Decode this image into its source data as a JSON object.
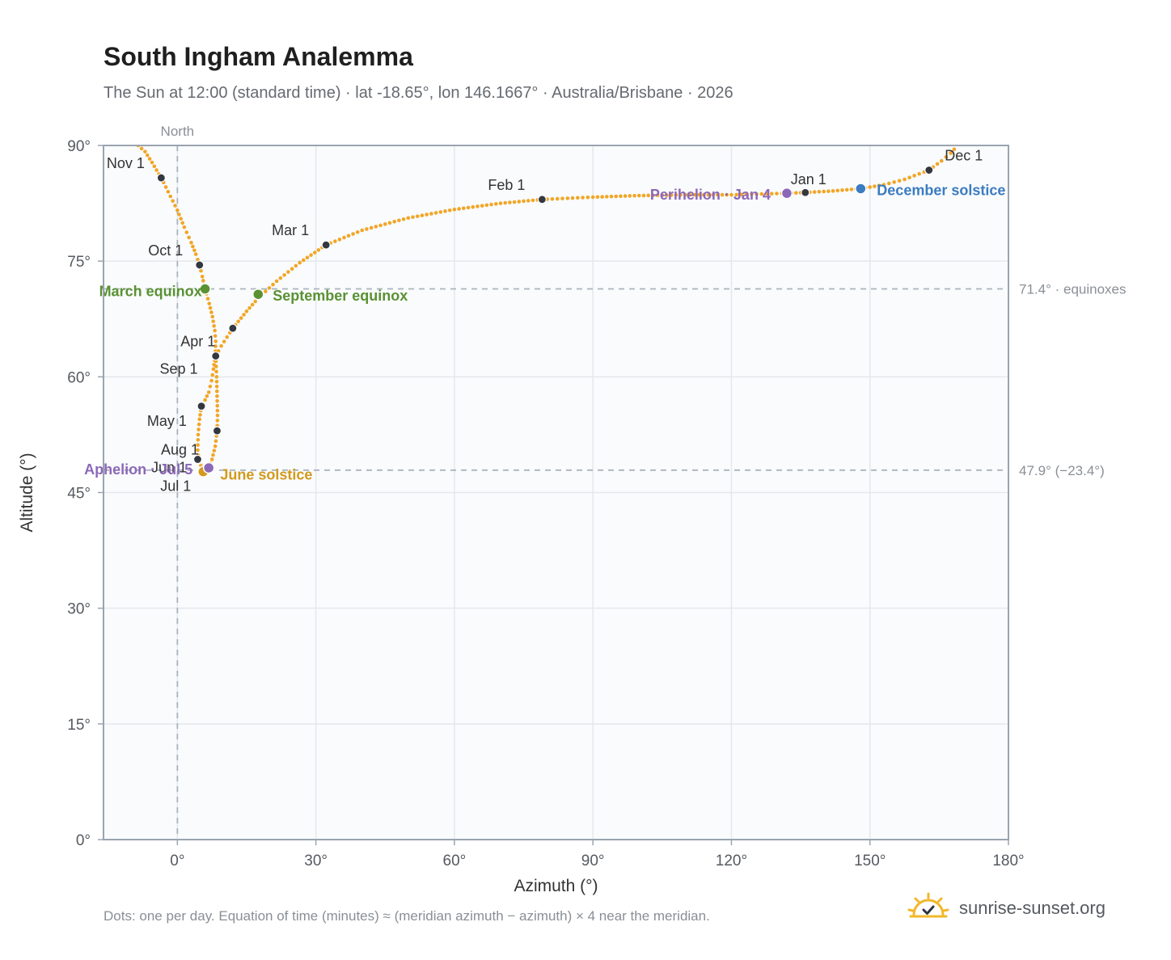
{
  "header": {
    "title": "South Ingham Analemma",
    "subtitle": "The Sun at 12:00 (standard time) · lat -18.65°, lon 146.1667° · Australia/Brisbane · 2026"
  },
  "footer": {
    "note": "Dots: one per day. Equation of time (minutes) ≈ (meridian azimuth − azimuth) × 4 near the meridian.",
    "brand": "sunrise-sunset.org",
    "brand_icon": "sun-logo-icon"
  },
  "colors": {
    "path": "#f2a626",
    "month_dot": "#333840",
    "equinox": "#5a9133",
    "june_solstice": "#d39a1b",
    "december_solstice": "#3b7cc0",
    "apsis": "#8c68b8",
    "ref_line": "#aab4bd",
    "plot_bg": "#f9fbfd",
    "grid": "#e4e8ec",
    "frame": "#9aa4b0"
  },
  "chart_data": {
    "type": "scatter",
    "xlabel": "Azimuth (°)",
    "ylabel": "Altitude (°)",
    "xlim": [
      -16,
      180
    ],
    "ylim": [
      0,
      90
    ],
    "xticks": [
      {
        "value": 0,
        "label": "0°"
      },
      {
        "value": 30,
        "label": "30°"
      },
      {
        "value": 60,
        "label": "60°"
      },
      {
        "value": 90,
        "label": "90°"
      },
      {
        "value": 120,
        "label": "120°"
      },
      {
        "value": 150,
        "label": "150°"
      },
      {
        "value": 180,
        "label": "180°"
      }
    ],
    "yticks": [
      {
        "value": 0,
        "label": "0°"
      },
      {
        "value": 15,
        "label": "15°"
      },
      {
        "value": 30,
        "label": "30°"
      },
      {
        "value": 45,
        "label": "45°"
      },
      {
        "value": 60,
        "label": "60°"
      },
      {
        "value": 75,
        "label": "75°"
      },
      {
        "value": 90,
        "label": "90°"
      }
    ],
    "grid": true,
    "north_marker": {
      "azimuth": 0,
      "label": "North"
    },
    "reference_lines": [
      {
        "altitude": 71.4,
        "label": "71.4° · equinoxes"
      },
      {
        "altitude": 47.9,
        "label": "47.9° (−23.4°)"
      }
    ],
    "path_points": [
      [
        -8.5,
        90.0
      ],
      [
        -7.0,
        89.2
      ],
      [
        -5.5,
        87.8
      ],
      [
        -3.5,
        85.8
      ],
      [
        -2.0,
        84.0
      ],
      [
        0.0,
        81.6
      ],
      [
        1.5,
        79.4
      ],
      [
        3.0,
        77.4
      ],
      [
        4.0,
        75.9
      ],
      [
        4.8,
        74.5
      ],
      [
        5.4,
        73.0
      ],
      [
        6.0,
        71.4
      ],
      [
        6.9,
        69.5
      ],
      [
        7.6,
        67.8
      ],
      [
        8.1,
        66.0
      ],
      [
        8.3,
        64.6
      ],
      [
        8.2,
        62.7
      ],
      [
        7.8,
        61.0
      ],
      [
        7.4,
        59.5
      ],
      [
        6.8,
        58.0
      ],
      [
        6.0,
        57.0
      ],
      [
        5.2,
        56.2
      ],
      [
        4.8,
        54.5
      ],
      [
        4.5,
        52.5
      ],
      [
        4.4,
        50.5
      ],
      [
        4.7,
        49.1
      ],
      [
        5.4,
        48.0
      ],
      [
        6.0,
        47.6
      ],
      [
        6.8,
        48.2
      ],
      [
        7.5,
        49.3
      ],
      [
        8.2,
        51.0
      ],
      [
        8.6,
        53.0
      ],
      [
        8.7,
        55.0
      ],
      [
        8.6,
        57.5
      ],
      [
        8.5,
        60.0
      ],
      [
        8.3,
        62.7
      ],
      [
        9.5,
        64.0
      ],
      [
        12.0,
        66.3
      ],
      [
        15.0,
        68.5
      ],
      [
        17.5,
        70.2
      ],
      [
        21.5,
        72.4
      ],
      [
        26.5,
        74.8
      ],
      [
        32.2,
        77.1
      ],
      [
        40.0,
        79.0
      ],
      [
        50.0,
        80.6
      ],
      [
        60.0,
        81.7
      ],
      [
        70.0,
        82.5
      ],
      [
        79.0,
        83.0
      ],
      [
        90.0,
        83.3
      ],
      [
        100.0,
        83.5
      ],
      [
        110.0,
        83.6
      ],
      [
        120.0,
        83.6
      ],
      [
        132.0,
        83.8
      ],
      [
        136.0,
        83.9
      ],
      [
        142.0,
        84.1
      ],
      [
        148.0,
        84.4
      ],
      [
        153.0,
        84.9
      ],
      [
        157.5,
        85.6
      ],
      [
        162.8,
        86.8
      ],
      [
        165.5,
        88.0
      ],
      [
        167.5,
        89.0
      ],
      [
        169.0,
        90.0
      ]
    ],
    "month_markers": [
      {
        "label": "Jan 1",
        "azimuth": 136.0,
        "altitude": 83.9
      },
      {
        "label": "Feb 1",
        "azimuth": 79.0,
        "altitude": 83.0
      },
      {
        "label": "Mar 1",
        "azimuth": 32.2,
        "altitude": 77.1
      },
      {
        "label": "Apr 1",
        "azimuth": 8.3,
        "altitude": 62.7
      },
      {
        "label": "May 1",
        "azimuth": 8.6,
        "altitude": 53.0
      },
      {
        "label": "Jun 1",
        "azimuth": 4.5,
        "altitude": 49.2
      },
      {
        "label": "Jul 1",
        "azimuth": 5.6,
        "altitude": 47.7
      },
      {
        "label": "Aug 1",
        "azimuth": 4.4,
        "altitude": 49.3
      },
      {
        "label": "Sep 1",
        "azimuth": 5.2,
        "altitude": 56.2
      },
      {
        "label": "Oct 1",
        "azimuth": 4.8,
        "altitude": 74.5
      },
      {
        "label": "Nov 1",
        "azimuth": -3.5,
        "altitude": 85.8
      },
      {
        "label": "Dec 1",
        "azimuth": 162.8,
        "altitude": 86.8
      }
    ],
    "unlabeled_markers": [
      {
        "azimuth": 12.0,
        "altitude": 66.3
      }
    ],
    "events": [
      {
        "label": "March equinox",
        "azimuth": 6.0,
        "altitude": 71.4,
        "color_key": "equinox"
      },
      {
        "label": "September equinox",
        "azimuth": 17.5,
        "altitude": 70.7,
        "color_key": "equinox"
      },
      {
        "label": "June solstice",
        "azimuth": 5.6,
        "altitude": 47.7,
        "color_key": "june_solstice"
      },
      {
        "label": "December solstice",
        "azimuth": 148.0,
        "altitude": 84.4,
        "color_key": "december_solstice"
      },
      {
        "label": "Perihelion · Jan 4",
        "azimuth": 132.0,
        "altitude": 83.8,
        "color_key": "apsis"
      },
      {
        "label": "Aphelion · Jul 5",
        "azimuth": 6.8,
        "altitude": 48.2,
        "color_key": "apsis"
      }
    ]
  }
}
